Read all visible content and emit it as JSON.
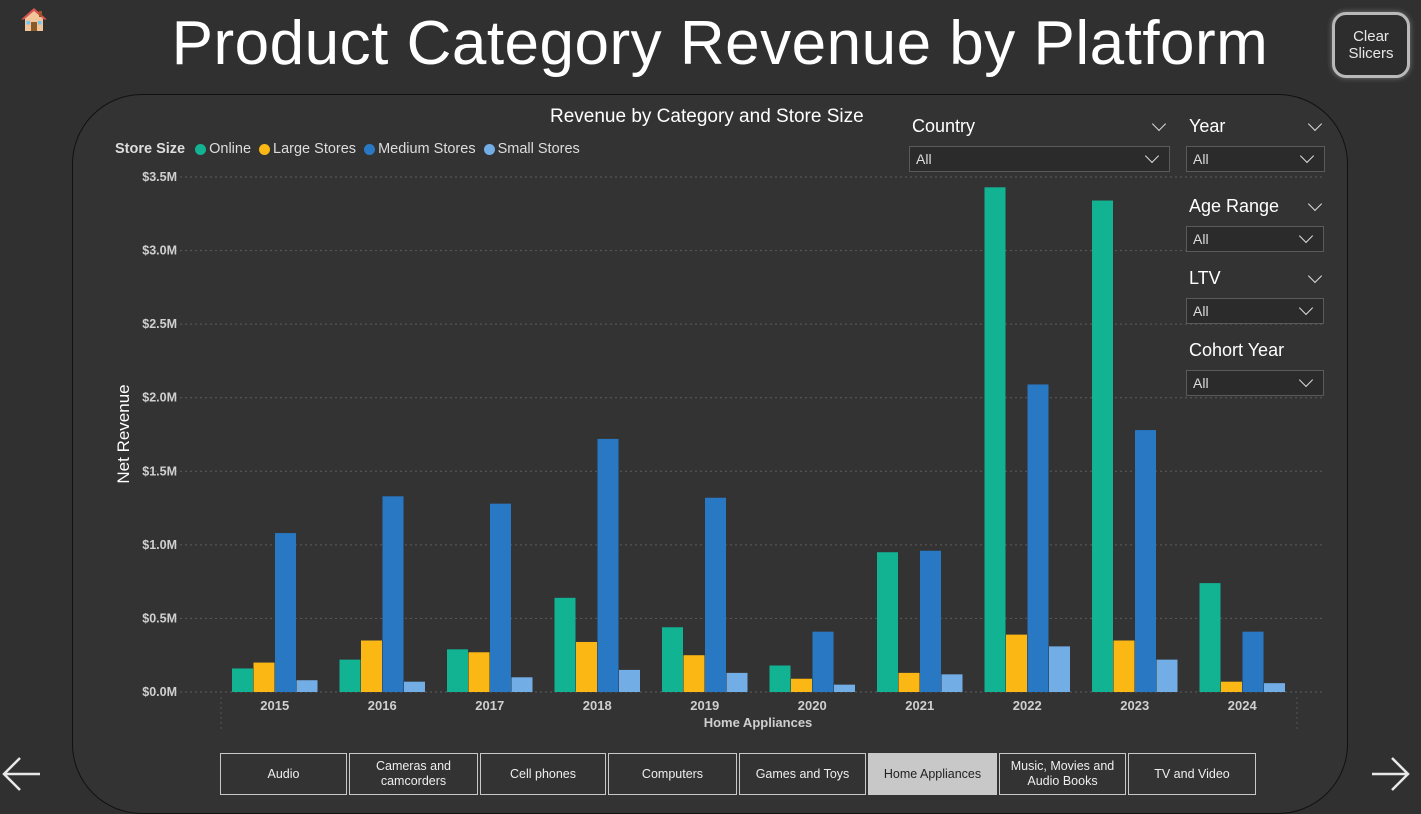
{
  "page_title": "Product Category Revenue by Platform",
  "clear_button_label": "Clear\nSlicers",
  "icons": {
    "home": "home-icon",
    "back": "arrow-left-icon",
    "forward": "arrow-right-icon"
  },
  "slicers": {
    "country": {
      "label": "Country",
      "value": "All"
    },
    "year": {
      "label": "Year",
      "value": "All"
    },
    "age_range": {
      "label": "Age Range",
      "value": "All"
    },
    "ltv": {
      "label": "LTV",
      "value": "All"
    },
    "cohort_year": {
      "label": "Cohort Year",
      "value": "All"
    }
  },
  "tabs": [
    {
      "label": "Audio",
      "active": false
    },
    {
      "label": "Cameras and\ncamcorders",
      "active": false
    },
    {
      "label": "Cell phones",
      "active": false
    },
    {
      "label": "Computers",
      "active": false
    },
    {
      "label": "Games and Toys",
      "active": false
    },
    {
      "label": "Home Appliances",
      "active": true
    },
    {
      "label": "Music, Movies and\nAudio Books",
      "active": false
    },
    {
      "label": "TV and Video",
      "active": false
    }
  ],
  "chart_data": {
    "type": "bar",
    "title": "Revenue by Category and Store Size",
    "legend_title": "Store Size",
    "legend_position": "top-left",
    "xlabel": "Home Appliances",
    "ylabel": "Net Revenue",
    "ylim": [
      0,
      3.5
    ],
    "yticks": [
      "$0.0M",
      "$0.5M",
      "$1.0M",
      "$1.5M",
      "$2.0M",
      "$2.5M",
      "$3.0M",
      "$3.5M"
    ],
    "grid": true,
    "categories": [
      "2015",
      "2016",
      "2017",
      "2018",
      "2019",
      "2020",
      "2021",
      "2022",
      "2023",
      "2024"
    ],
    "series": [
      {
        "name": "Online",
        "color": "#12b393",
        "values": [
          0.16,
          0.22,
          0.29,
          0.64,
          0.44,
          0.18,
          0.95,
          3.43,
          3.34,
          0.74
        ]
      },
      {
        "name": "Large Stores",
        "color": "#fbb714",
        "values": [
          0.2,
          0.35,
          0.27,
          0.34,
          0.25,
          0.09,
          0.13,
          0.39,
          0.35,
          0.07
        ]
      },
      {
        "name": "Medium Stores",
        "color": "#2878c4",
        "values": [
          1.08,
          1.33,
          1.28,
          1.72,
          1.32,
          0.41,
          0.96,
          2.09,
          1.78,
          0.41
        ]
      },
      {
        "name": "Small Stores",
        "color": "#73ade6",
        "values": [
          0.08,
          0.07,
          0.1,
          0.15,
          0.13,
          0.05,
          0.12,
          0.31,
          0.22,
          0.06
        ]
      }
    ]
  }
}
